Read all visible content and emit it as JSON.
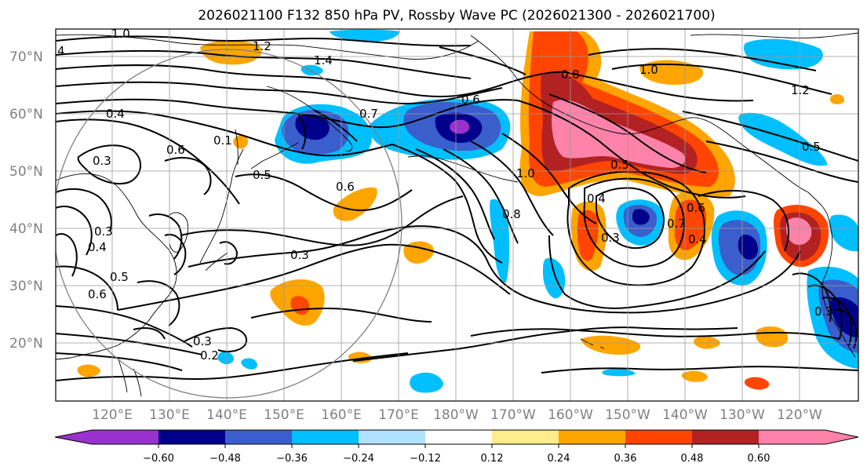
{
  "title": "2026021100 F132 850 hPa PV, Rossby Wave PC (2026021300 - 2026021700)",
  "lat_labels": [
    "70°N",
    "60°N",
    "50°N",
    "40°N",
    "30°N",
    "20°N"
  ],
  "lon_labels": [
    "120°E",
    "130°E",
    "140°E",
    "150°E",
    "160°E",
    "170°E",
    "180°W",
    "170°W",
    "160°W",
    "150°W",
    "140°W",
    "130°W",
    "120°W"
  ],
  "colorbar": {
    "ticks": [
      "−0.60",
      "−0.48",
      "−0.36",
      "−0.24",
      "−0.12",
      "0.12",
      "0.24",
      "0.36",
      "0.48",
      "0.60"
    ],
    "colors": [
      "#9932cc",
      "#00008b",
      "#3a5fcd",
      "#00bfff",
      "#b0e2ff",
      "#ffffff",
      "#ffec8b",
      "#ffa500",
      "#ff4500",
      "#b22222",
      "#ff82ab"
    ]
  },
  "contour_labels": [
    "1.0",
    "1.2",
    "4",
    "1.4",
    "0.4",
    "0.3",
    "0.6",
    "0.1",
    "0.5",
    "0.6",
    "0.7",
    "0.6",
    "0.8",
    "1.0",
    "0.8",
    "1.0",
    "0.5",
    "0.4",
    "0.3",
    "0.7",
    "0.6",
    "0.4",
    "1.2",
    "0.5",
    "0.3",
    "0.4",
    "0.5",
    "0.6",
    "0.3",
    "0.2",
    "0.3",
    "0.3"
  ]
}
